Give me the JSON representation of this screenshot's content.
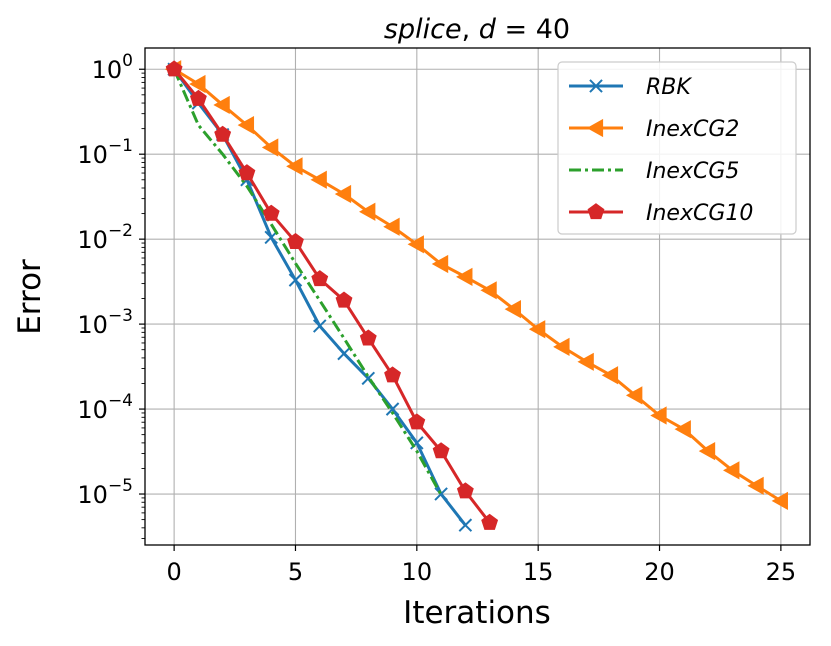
{
  "chart_data": {
    "type": "line",
    "title": "splice, d = 40",
    "title_parts": {
      "dataset": "splice",
      "separator": ", ",
      "param": "d",
      "eq": " = ",
      "value": "40"
    },
    "xlabel": "Iterations",
    "ylabel": "Error",
    "xlim": [
      -1.2,
      26.2
    ],
    "ylim_log10": [
      -5.6,
      0.25
    ],
    "yscale": "log",
    "grid": true,
    "legend_position": "top-right",
    "xticks": [
      0,
      5,
      10,
      15,
      20,
      25
    ],
    "yticks": [
      {
        "base": "10",
        "exp": "0",
        "log10": 0
      },
      {
        "base": "10",
        "exp": "−1",
        "log10": -1
      },
      {
        "base": "10",
        "exp": "−2",
        "log10": -2
      },
      {
        "base": "10",
        "exp": "−3",
        "log10": -3
      },
      {
        "base": "10",
        "exp": "−4",
        "log10": -4
      },
      {
        "base": "10",
        "exp": "−5",
        "log10": -5
      }
    ],
    "series": [
      {
        "name": "RBK",
        "color": "#1f77b4",
        "marker": "x",
        "dash": "solid",
        "x": [
          0,
          1,
          2,
          3,
          4,
          5,
          6,
          7,
          8,
          9,
          10,
          11,
          12
        ],
        "y": [
          1.0,
          0.4,
          0.17,
          0.05,
          0.0105,
          0.0033,
          0.00095,
          0.00045,
          0.00023,
          0.0001,
          4e-05,
          1e-05,
          4.3e-06
        ]
      },
      {
        "name": "InexCG2",
        "color": "#ff7f0e",
        "marker": "triangle-left",
        "dash": "solid",
        "x": [
          0,
          1,
          2,
          3,
          4,
          5,
          6,
          7,
          8,
          9,
          10,
          11,
          12,
          13,
          14,
          15,
          16,
          17,
          18,
          19,
          20,
          21,
          22,
          23,
          24,
          25
        ],
        "y": [
          1.0,
          0.67,
          0.38,
          0.22,
          0.12,
          0.072,
          0.05,
          0.034,
          0.021,
          0.014,
          0.0087,
          0.0051,
          0.0036,
          0.0025,
          0.0015,
          0.00087,
          0.00054,
          0.00036,
          0.00025,
          0.000145,
          8.4e-05,
          5.8e-05,
          3.2e-05,
          1.9e-05,
          1.25e-05,
          8.3e-06
        ]
      },
      {
        "name": "InexCG5",
        "color": "#2ca02c",
        "marker": "none",
        "dash": "dashdot",
        "x": [
          0,
          1,
          2,
          3,
          4,
          5,
          6,
          7,
          8,
          9,
          10,
          11
        ],
        "y": [
          1.0,
          0.22,
          0.1,
          0.042,
          0.015,
          0.0052,
          0.0019,
          0.00068,
          0.00024,
          9e-05,
          3.2e-05,
          9.8e-06
        ]
      },
      {
        "name": "InexCG10",
        "color": "#d62728",
        "marker": "pentagon",
        "dash": "solid",
        "x": [
          0,
          1,
          2,
          3,
          4,
          5,
          6,
          7,
          8,
          9,
          10,
          11,
          12,
          13
        ],
        "y": [
          1.0,
          0.45,
          0.17,
          0.06,
          0.02,
          0.0093,
          0.0034,
          0.0019,
          0.00068,
          0.00025,
          7e-05,
          3.2e-05,
          1.08e-05,
          4.6e-06
        ]
      }
    ]
  }
}
